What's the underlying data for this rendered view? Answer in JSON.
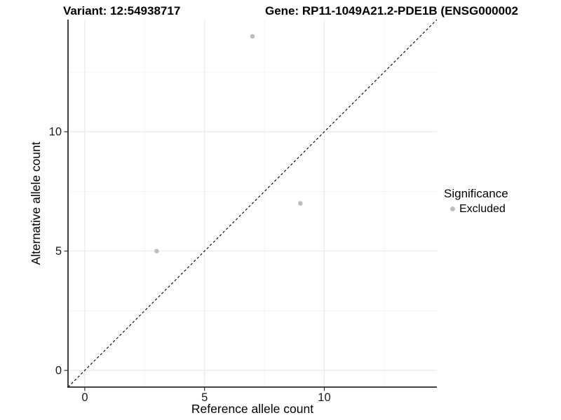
{
  "header": {
    "variant_title": "Variant: 12:54938717",
    "gene_title": "Gene: RP11-1049A21.2-PDE1B (ENSG000002"
  },
  "chart_data": {
    "type": "scatter",
    "xlabel": "Reference allele count",
    "ylabel": "Alternative allele count",
    "xlim": [
      -0.7,
      14.7
    ],
    "ylim": [
      -0.7,
      14.7
    ],
    "x_ticks": {
      "major": [
        0,
        5,
        10
      ],
      "minor": [
        2.5,
        7.5,
        12.5
      ]
    },
    "y_ticks": {
      "major": [
        0,
        5,
        10
      ],
      "minor": [
        2.5,
        7.5,
        12.5
      ]
    },
    "grid": "major+minor",
    "series": [
      {
        "name": "Excluded",
        "points": [
          {
            "x": 3,
            "y": 5
          },
          {
            "x": 9,
            "y": 7
          },
          {
            "x": 7,
            "y": 14
          }
        ]
      }
    ],
    "identity_line": {
      "equation": "y = x",
      "style": "dashed",
      "color": "#000000"
    },
    "colors": {
      "point": "#bebebe",
      "grid_major": "#e9e9e9",
      "grid_minor": "#f4f4f4",
      "axis_line": "#2a2a2a",
      "tick": "#333333",
      "tick_label": "#1a1a1a",
      "axis_title": "#000000"
    },
    "legend": {
      "title": "Significance",
      "position": "right",
      "items": [
        {
          "label": "Excluded",
          "color": "#bebebe"
        }
      ]
    }
  }
}
